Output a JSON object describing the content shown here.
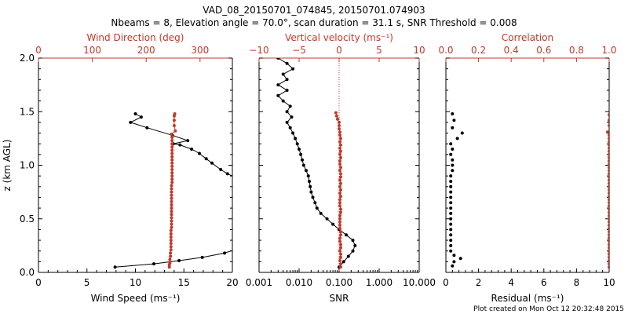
{
  "figure": {
    "title_line1": "VAD_08_20150701_074845, 20150701.074903",
    "title_line2": "Nbeams = 8, Elevation angle = 70.0°, scan duration = 31.1 s, SNR Threshold = 0.008",
    "footer": "Plot created on Mon Oct 12 20:32:48 2015"
  },
  "colors": {
    "black": "#000000",
    "red": "#c0392b"
  },
  "chart_data": [
    {
      "type": "line",
      "panel": "wind",
      "ylabel": "z (km AGL)",
      "ylim": [
        0,
        2
      ],
      "yticks": [
        "0.0",
        "0.5",
        "1.0",
        "1.5",
        "2.0"
      ],
      "xlabel": "Wind Speed (ms⁻¹)",
      "xlim": [
        0,
        20
      ],
      "xticks": [
        "0",
        "5",
        "10",
        "15",
        "20"
      ],
      "toplabel": "Wind Direction (deg)",
      "toplim": [
        0,
        360
      ],
      "topticks": [
        "0",
        "100",
        "200",
        "300"
      ],
      "series": [
        {
          "axis": "bottom",
          "color": "black",
          "points": [
            [
              7.9,
              0.05
            ],
            [
              11.9,
              0.08
            ],
            [
              14.5,
              0.11
            ],
            [
              16.9,
              0.14
            ],
            [
              19.2,
              0.18
            ],
            [
              20.2,
              0.21
            ],
            [
              20.5,
              0.88
            ],
            [
              19.5,
              0.92
            ],
            [
              18.8,
              0.96
            ],
            [
              17.9,
              1.02
            ],
            [
              17.3,
              1.06
            ],
            [
              16.6,
              1.11
            ],
            [
              15.8,
              1.15
            ],
            [
              14.6,
              1.19
            ],
            [
              13.9,
              1.2
            ],
            [
              15.4,
              1.23
            ],
            [
              13.8,
              1.28
            ],
            [
              11.2,
              1.35
            ],
            [
              9.5,
              1.4
            ],
            [
              10.6,
              1.45
            ],
            [
              10.0,
              1.48
            ]
          ]
        },
        {
          "axis": "top",
          "color": "red",
          "points": [
            [
              243,
              0.05
            ],
            [
              243,
              0.07
            ],
            [
              244,
              0.09
            ],
            [
              244,
              0.12
            ],
            [
              245,
              0.15
            ],
            [
              245,
              0.18
            ],
            [
              246,
              0.21
            ],
            [
              246,
              0.24
            ],
            [
              246,
              0.27
            ],
            [
              246,
              0.3
            ],
            [
              246,
              0.33
            ],
            [
              246,
              0.36
            ],
            [
              246,
              0.39
            ],
            [
              247,
              0.42
            ],
            [
              247,
              0.45
            ],
            [
              247,
              0.48
            ],
            [
              247,
              0.51
            ],
            [
              247,
              0.54
            ],
            [
              247,
              0.57
            ],
            [
              247,
              0.6
            ],
            [
              247,
              0.63
            ],
            [
              247,
              0.66
            ],
            [
              247,
              0.69
            ],
            [
              247,
              0.72
            ],
            [
              247,
              0.75
            ],
            [
              247,
              0.78
            ],
            [
              247,
              0.81
            ],
            [
              248,
              0.84
            ],
            [
              248,
              0.87
            ],
            [
              248,
              0.9
            ],
            [
              248,
              0.93
            ],
            [
              248,
              0.96
            ],
            [
              248,
              0.99
            ],
            [
              248,
              1.02
            ],
            [
              248,
              1.05
            ],
            [
              248,
              1.08
            ],
            [
              248,
              1.11
            ],
            [
              248,
              1.14
            ],
            [
              248,
              1.17
            ],
            [
              248,
              1.2
            ],
            [
              248,
              1.23
            ],
            [
              248,
              1.26
            ],
            [
              247,
              1.29
            ],
            [
              254,
              1.32
            ],
            [
              252,
              1.37
            ],
            [
              252,
              1.42
            ],
            [
              252,
              1.46
            ],
            [
              253,
              1.48
            ]
          ]
        }
      ]
    },
    {
      "type": "line",
      "panel": "snr",
      "ylim": [
        0,
        2
      ],
      "xlabel": "SNR",
      "xscale": "log",
      "xlim": [
        0.001,
        10
      ],
      "xticks": [
        "0.001",
        "0.010",
        "0.100",
        "1.000",
        "10.000"
      ],
      "toplabel": "Vertical velocity (ms⁻¹)",
      "toplim": [
        -10,
        10
      ],
      "topticks": [
        "−10",
        "−5",
        "0",
        "5",
        "10"
      ],
      "series": [
        {
          "axis": "bottom",
          "color": "black",
          "points": [
            [
              0.1,
              0.05
            ],
            [
              0.13,
              0.1
            ],
            [
              0.17,
              0.15
            ],
            [
              0.22,
              0.2
            ],
            [
              0.25,
              0.25
            ],
            [
              0.22,
              0.3
            ],
            [
              0.15,
              0.35
            ],
            [
              0.1,
              0.4
            ],
            [
              0.07,
              0.45
            ],
            [
              0.05,
              0.5
            ],
            [
              0.035,
              0.55
            ],
            [
              0.028,
              0.6
            ],
            [
              0.025,
              0.65
            ],
            [
              0.022,
              0.7
            ],
            [
              0.02,
              0.75
            ],
            [
              0.019,
              0.8
            ],
            [
              0.018,
              0.85
            ],
            [
              0.017,
              0.9
            ],
            [
              0.015,
              0.95
            ],
            [
              0.013,
              1.0
            ],
            [
              0.012,
              1.05
            ],
            [
              0.011,
              1.1
            ],
            [
              0.01,
              1.15
            ],
            [
              0.009,
              1.2
            ],
            [
              0.008,
              1.25
            ],
            [
              0.007,
              1.3
            ],
            [
              0.006,
              1.35
            ],
            [
              0.005,
              1.4
            ],
            [
              0.0065,
              1.45
            ],
            [
              0.005,
              1.5
            ],
            [
              0.006,
              1.55
            ],
            [
              0.004,
              1.6
            ],
            [
              0.003,
              1.65
            ],
            [
              0.005,
              1.7
            ],
            [
              0.003,
              1.75
            ],
            [
              0.005,
              1.8
            ],
            [
              0.004,
              1.85
            ],
            [
              0.007,
              1.9
            ],
            [
              0.005,
              1.95
            ],
            [
              0.003,
              2.0
            ]
          ]
        },
        {
          "axis": "top",
          "color": "red",
          "points": [
            [
              0.2,
              0.05
            ],
            [
              0.2,
              0.08
            ],
            [
              0.1,
              0.11
            ],
            [
              0.2,
              0.14
            ],
            [
              0.2,
              0.17
            ],
            [
              0.1,
              0.2
            ],
            [
              0.2,
              0.23
            ],
            [
              0.2,
              0.26
            ],
            [
              0.1,
              0.29
            ],
            [
              0.1,
              0.32
            ],
            [
              0.2,
              0.35
            ],
            [
              0.2,
              0.38
            ],
            [
              0.1,
              0.41
            ],
            [
              0.1,
              0.44
            ],
            [
              0.1,
              0.47
            ],
            [
              0.1,
              0.5
            ],
            [
              0.1,
              0.53
            ],
            [
              0.2,
              0.56
            ],
            [
              0.2,
              0.59
            ],
            [
              0.1,
              0.62
            ],
            [
              0.1,
              0.65
            ],
            [
              0.1,
              0.68
            ],
            [
              0.2,
              0.71
            ],
            [
              0.1,
              0.74
            ],
            [
              0.2,
              0.77
            ],
            [
              0.1,
              0.8
            ],
            [
              0.2,
              0.83
            ],
            [
              0.1,
              0.86
            ],
            [
              0.2,
              0.89
            ],
            [
              0.2,
              0.92
            ],
            [
              0.1,
              0.95
            ],
            [
              0.2,
              0.98
            ],
            [
              0.1,
              1.01
            ],
            [
              0.1,
              1.04
            ],
            [
              0.2,
              1.07
            ],
            [
              0.1,
              1.1
            ],
            [
              0.2,
              1.13
            ],
            [
              0.1,
              1.16
            ],
            [
              0.2,
              1.19
            ],
            [
              0.1,
              1.22
            ],
            [
              0.2,
              1.25
            ],
            [
              0.1,
              1.28
            ],
            [
              0.1,
              1.31
            ],
            [
              0.0,
              1.34
            ],
            [
              0.0,
              1.37
            ],
            [
              0.0,
              1.4
            ],
            [
              -0.2,
              1.43
            ],
            [
              -0.3,
              1.46
            ],
            [
              -0.4,
              1.49
            ]
          ]
        }
      ]
    },
    {
      "type": "scatter",
      "panel": "residual",
      "ylim": [
        0,
        2
      ],
      "xlabel": "Residual (ms⁻¹)",
      "xlim": [
        0,
        10
      ],
      "xticks": [
        "0",
        "2",
        "4",
        "6",
        "8",
        "10"
      ],
      "toplabel": "Correlation",
      "toplim": [
        0,
        1
      ],
      "topticks": [
        "0.0",
        "0.2",
        "0.4",
        "0.6",
        "0.8",
        "1.0"
      ],
      "series": [
        {
          "axis": "bottom",
          "color": "black",
          "points": [
            [
              0.4,
              0.06
            ],
            [
              0.5,
              0.1
            ],
            [
              0.9,
              0.13
            ],
            [
              0.5,
              0.16
            ],
            [
              0.3,
              0.2
            ],
            [
              0.3,
              0.25
            ],
            [
              0.3,
              0.3
            ],
            [
              0.3,
              0.35
            ],
            [
              0.3,
              0.4
            ],
            [
              0.3,
              0.45
            ],
            [
              0.3,
              0.5
            ],
            [
              0.3,
              0.55
            ],
            [
              0.3,
              0.6
            ],
            [
              0.3,
              0.65
            ],
            [
              0.3,
              0.7
            ],
            [
              0.3,
              0.75
            ],
            [
              0.3,
              0.8
            ],
            [
              0.3,
              0.85
            ],
            [
              0.3,
              0.9
            ],
            [
              0.4,
              0.95
            ],
            [
              0.4,
              1.0
            ],
            [
              0.4,
              1.05
            ],
            [
              0.3,
              1.1
            ],
            [
              0.4,
              1.15
            ],
            [
              0.3,
              1.2
            ],
            [
              0.7,
              1.25
            ],
            [
              1.0,
              1.3
            ],
            [
              0.4,
              1.35
            ],
            [
              0.5,
              1.42
            ],
            [
              0.4,
              1.48
            ]
          ]
        },
        {
          "axis": "top",
          "color": "red",
          "points": [
            [
              1.0,
              0.05
            ],
            [
              1.0,
              0.08
            ],
            [
              1.0,
              0.11
            ],
            [
              1.0,
              0.14
            ],
            [
              1.0,
              0.17
            ],
            [
              1.0,
              0.2
            ],
            [
              1.0,
              0.23
            ],
            [
              1.0,
              0.26
            ],
            [
              1.0,
              0.29
            ],
            [
              1.0,
              0.32
            ],
            [
              1.0,
              0.35
            ],
            [
              1.0,
              0.38
            ],
            [
              1.0,
              0.41
            ],
            [
              1.0,
              0.44
            ],
            [
              1.0,
              0.47
            ],
            [
              1.0,
              0.5
            ],
            [
              1.0,
              0.53
            ],
            [
              1.0,
              0.56
            ],
            [
              1.0,
              0.59
            ],
            [
              1.0,
              0.62
            ],
            [
              1.0,
              0.65
            ],
            [
              1.0,
              0.68
            ],
            [
              1.0,
              0.71
            ],
            [
              1.0,
              0.74
            ],
            [
              1.0,
              0.77
            ],
            [
              1.0,
              0.8
            ],
            [
              1.0,
              0.83
            ],
            [
              1.0,
              0.86
            ],
            [
              1.0,
              0.89
            ],
            [
              1.0,
              0.92
            ],
            [
              1.0,
              0.95
            ],
            [
              1.0,
              0.98
            ],
            [
              1.0,
              1.01
            ],
            [
              1.0,
              1.04
            ],
            [
              1.0,
              1.07
            ],
            [
              1.0,
              1.1
            ],
            [
              1.0,
              1.13
            ],
            [
              1.0,
              1.16
            ],
            [
              1.0,
              1.19
            ],
            [
              1.0,
              1.22
            ],
            [
              1.0,
              1.25
            ],
            [
              1.0,
              1.28
            ],
            [
              0.99,
              1.31
            ],
            [
              1.0,
              1.37
            ],
            [
              1.0,
              1.42
            ],
            [
              1.0,
              1.47
            ]
          ]
        }
      ]
    }
  ]
}
